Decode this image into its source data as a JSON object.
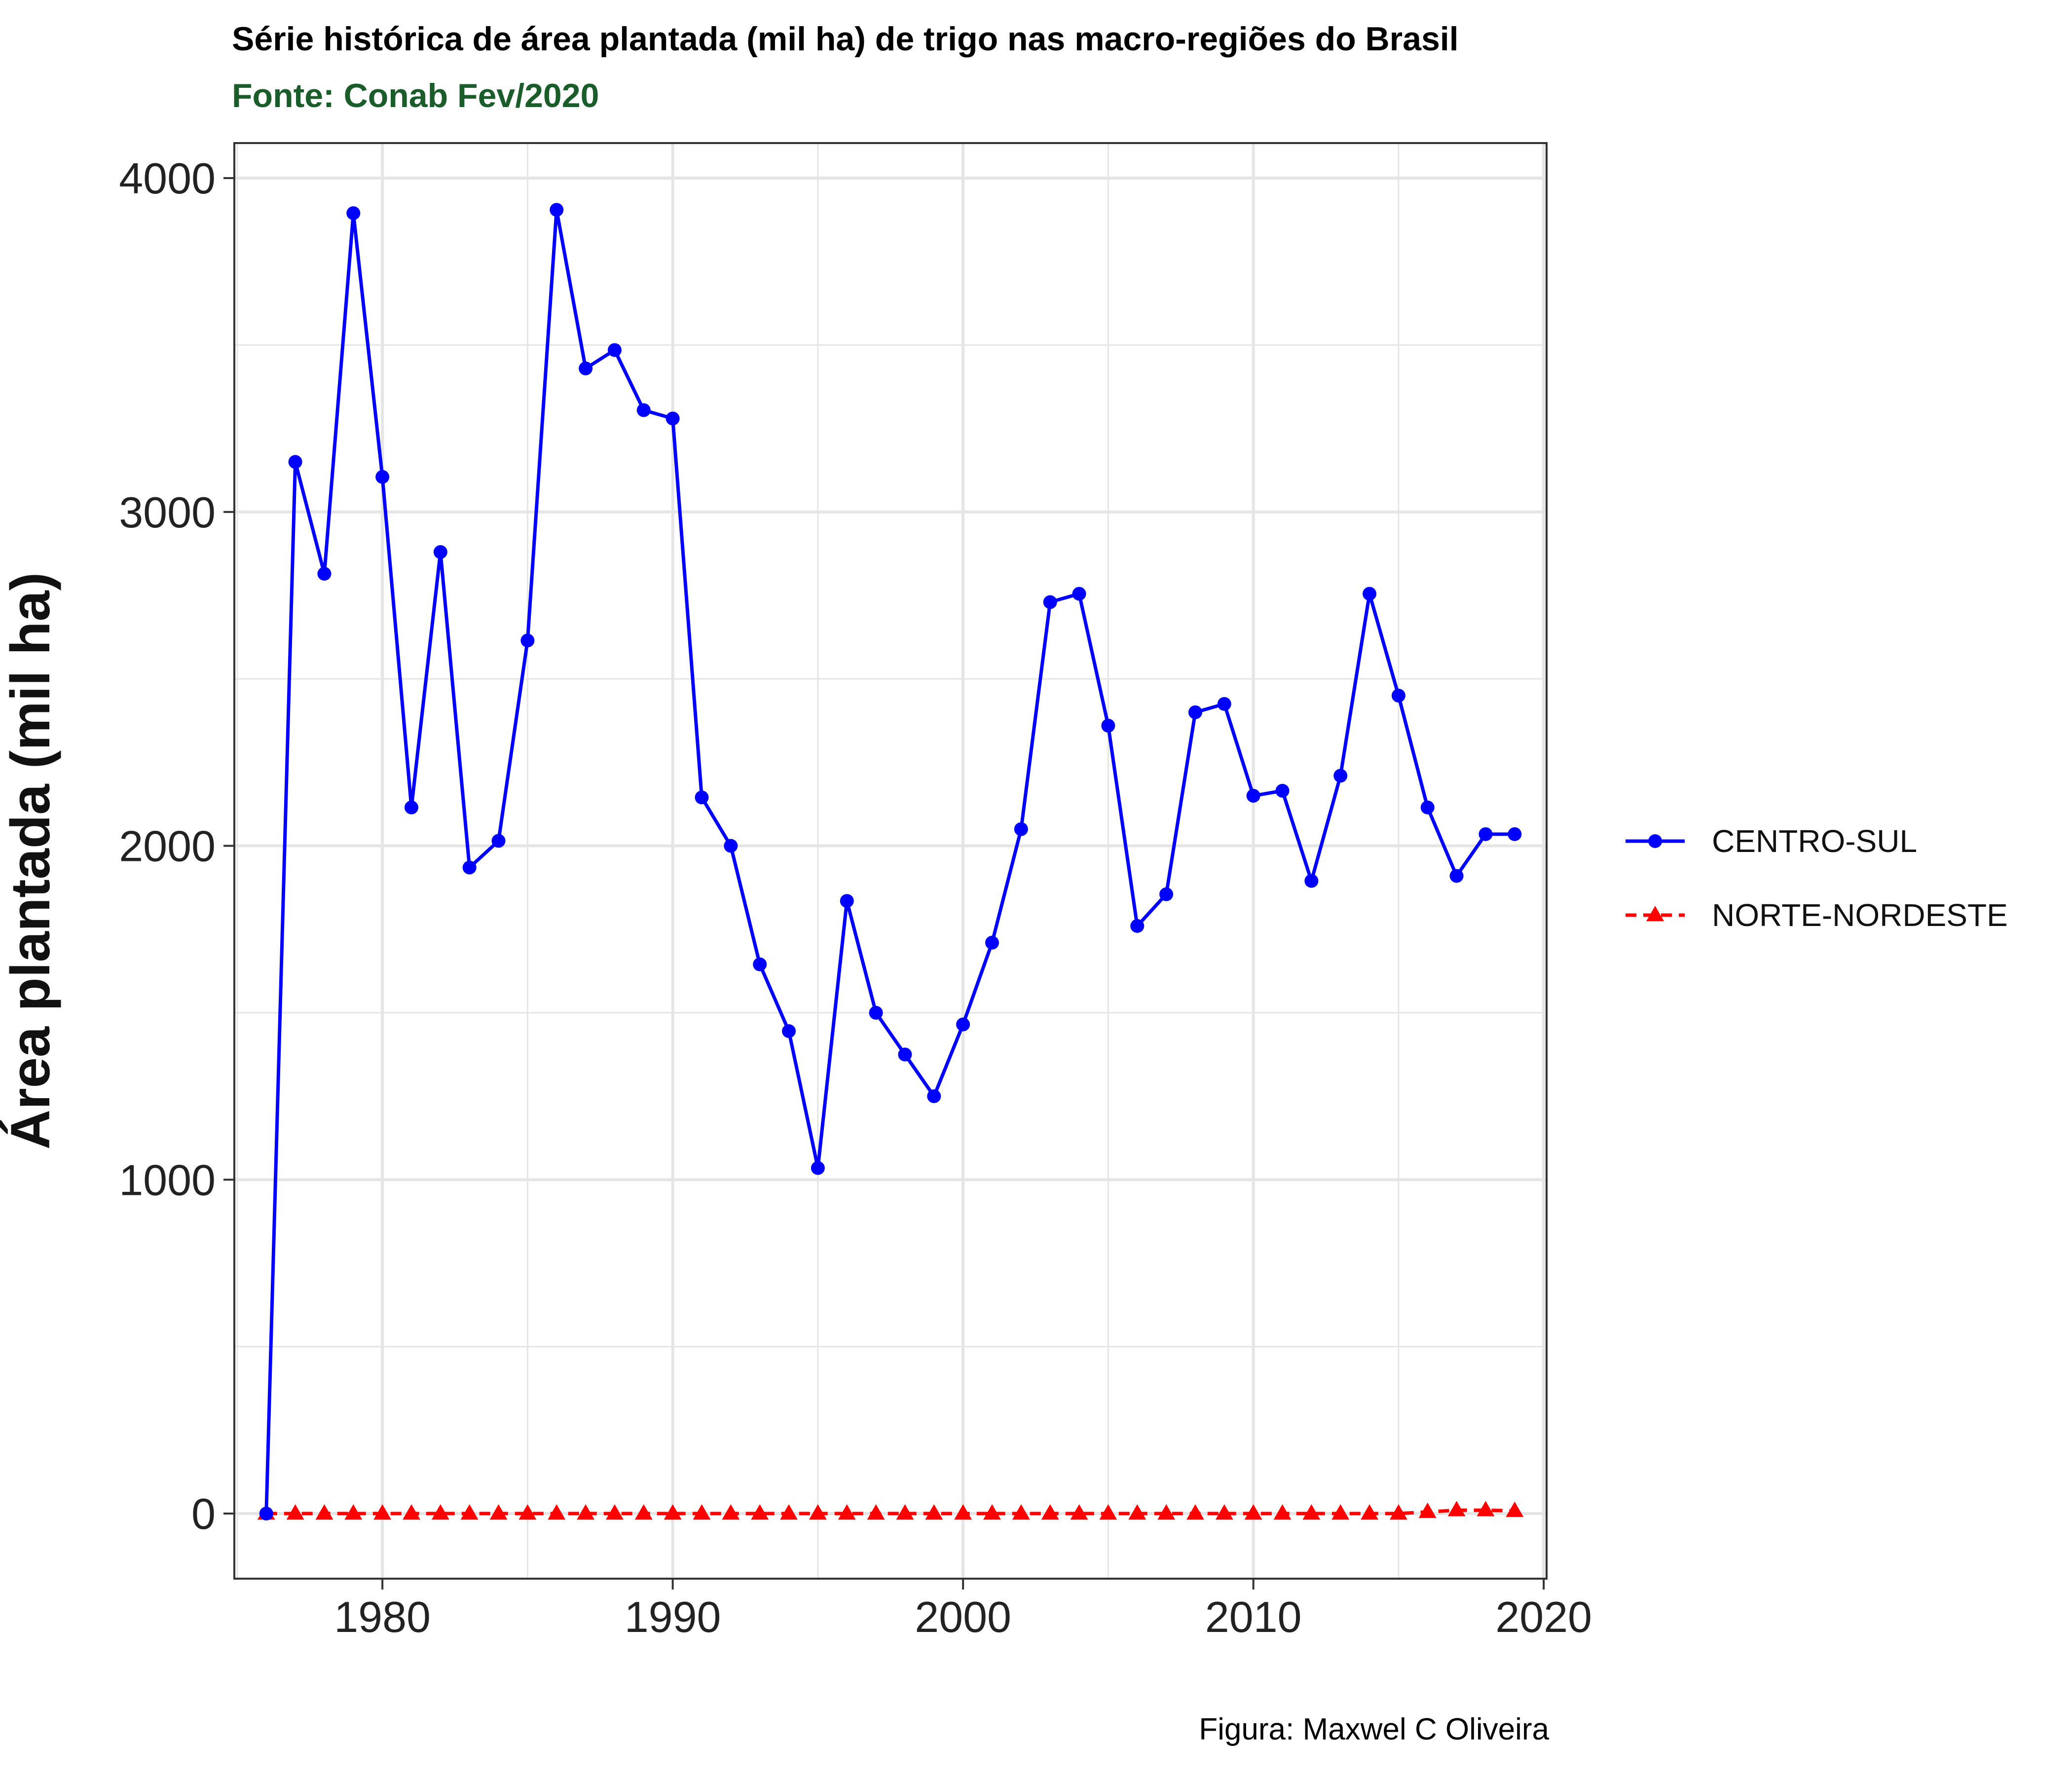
{
  "title": "Série histórica de área plantada (mil ha) de trigo nas macro-regiões do Brasil",
  "subtitle": "Fonte: Conab Fev/2020",
  "caption": "Figura: Maxwel C Oliveira",
  "colors": {
    "subtitle": "#1a5c2a",
    "centro_sul": "#0000ff",
    "norte_nordeste": "#ff0000",
    "grid": "#e5e5e5",
    "axis": "#333333"
  },
  "chart_data": {
    "type": "line",
    "title": "Série histórica de área plantada (mil ha) de trigo nas macro-regiões do Brasil",
    "subtitle": "Fonte: Conab Fev/2020",
    "xlabel": "",
    "ylabel": "Área plantada (mil ha)",
    "xlim": [
      1974.9,
      2020.1
    ],
    "ylim": [
      -195,
      4105
    ],
    "xticks": [
      1980,
      1990,
      2000,
      2010,
      2020
    ],
    "yticks": [
      0,
      1000,
      2000,
      3000,
      4000
    ],
    "grid": true,
    "legend_position": "right",
    "x": [
      1976,
      1977,
      1978,
      1979,
      1980,
      1981,
      1982,
      1983,
      1984,
      1985,
      1986,
      1987,
      1988,
      1989,
      1990,
      1991,
      1992,
      1993,
      1994,
      1995,
      1996,
      1997,
      1998,
      1999,
      2000,
      2001,
      2002,
      2003,
      2004,
      2005,
      2006,
      2007,
      2008,
      2009,
      2010,
      2011,
      2012,
      2013,
      2014,
      2015,
      2016,
      2017,
      2018,
      2019
    ],
    "series": [
      {
        "name": "CENTRO-SUL",
        "marker": "circle",
        "line": "solid",
        "values": [
          0,
          3150,
          2815,
          3895,
          3105,
          2115,
          2880,
          1935,
          2015,
          2615,
          3905,
          3430,
          3485,
          3305,
          3280,
          2145,
          2000,
          1645,
          1445,
          1035,
          1835,
          1500,
          1375,
          1250,
          1465,
          1710,
          2050,
          2730,
          2755,
          2360,
          1760,
          1855,
          2400,
          2425,
          2150,
          2165,
          1895,
          2210,
          2755,
          2450,
          2115,
          1910,
          2035,
          2035
        ]
      },
      {
        "name": "NORTE-NORDESTE",
        "marker": "triangle",
        "line": "dashed",
        "values": [
          0,
          0,
          0,
          0,
          0,
          0,
          0,
          0,
          0,
          0,
          0,
          0,
          0,
          0,
          0,
          0,
          0,
          0,
          0,
          0,
          0,
          0,
          0,
          0,
          0,
          0,
          0,
          0,
          0,
          0,
          0,
          0,
          0,
          0,
          0,
          0,
          0,
          0,
          0,
          0,
          5,
          10,
          10,
          8
        ]
      }
    ]
  }
}
